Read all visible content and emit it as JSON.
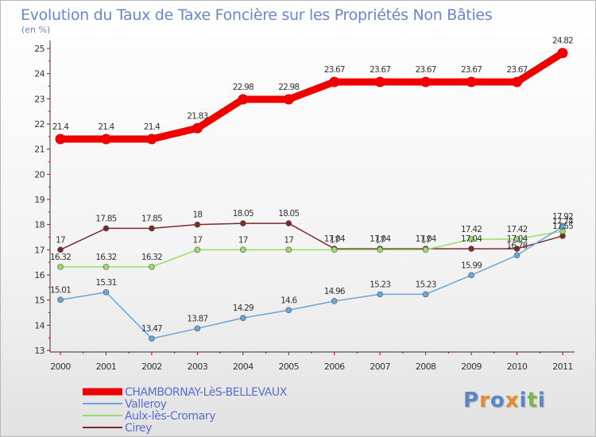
{
  "chart_data": {
    "type": "line",
    "title": "Evolution du Taux de Taxe Foncière sur les Propriétés Non Bâties",
    "ylabel": "(en %)",
    "xlabel": "",
    "x": [
      "2000",
      "2001",
      "2002",
      "2003",
      "2004",
      "2005",
      "2006",
      "2007",
      "2008",
      "2009",
      "2010",
      "2011"
    ],
    "ylim": [
      13,
      25
    ],
    "yticks": [
      13,
      14,
      15,
      16,
      17,
      18,
      19,
      20,
      21,
      22,
      23,
      24,
      25
    ],
    "grid": false,
    "legend_position": "bottom-left",
    "series": [
      {
        "name": "CHAMBORNAY-LèS-BELLEVAUX",
        "color": "#ee0000",
        "values": [
          21.4,
          21.4,
          21.4,
          21.83,
          22.98,
          22.98,
          23.67,
          23.67,
          23.67,
          23.67,
          23.67,
          24.82
        ],
        "labels": [
          "21.4",
          "21.4",
          "21.4",
          "21.83",
          "22.98",
          "22.98",
          "23.67",
          "23.67",
          "23.67",
          "23.67",
          "23.67",
          "24.82"
        ]
      },
      {
        "name": "Valleroy",
        "color": "#6aa4d8",
        "values": [
          15.01,
          15.31,
          13.47,
          13.87,
          14.29,
          14.6,
          14.96,
          15.23,
          15.23,
          15.99,
          16.78,
          17.92
        ],
        "labels": [
          "15.01",
          "15.31",
          "13.47",
          "13.87",
          "14.29",
          "14.6",
          "14.96",
          "15.23",
          "15.23",
          "15.99",
          "16.78",
          "17.92"
        ]
      },
      {
        "name": "Aulx-lès-Cromary",
        "color": "#99dd66",
        "values": [
          16.32,
          16.32,
          16.32,
          17,
          17,
          17,
          17,
          17,
          17,
          17.42,
          17.42,
          17.74
        ],
        "labels": [
          "16.32",
          "16.32",
          "16.32",
          "17",
          "17",
          "17",
          "17",
          "17",
          "17",
          "17.42",
          "17.42",
          "17.74"
        ]
      },
      {
        "name": "Cirey",
        "color": "#7a2a2a",
        "values": [
          17,
          17.85,
          17.85,
          18,
          18.05,
          18.05,
          17.04,
          17.04,
          17.04,
          17.04,
          17.04,
          17.55
        ],
        "labels": [
          "17",
          "17.85",
          "17.85",
          "18",
          "18.05",
          "18.05",
          "17.04",
          "17.04",
          "17.04",
          "17.04",
          "17.04",
          "17.55"
        ]
      }
    ]
  },
  "logo": {
    "text": "Proxiti",
    "colors": [
      "#5b86c8",
      "#e88c2a",
      "#5b86c8",
      "#e88c2a",
      "#5b86c8",
      "#7ab648",
      "#5b86c8"
    ]
  }
}
